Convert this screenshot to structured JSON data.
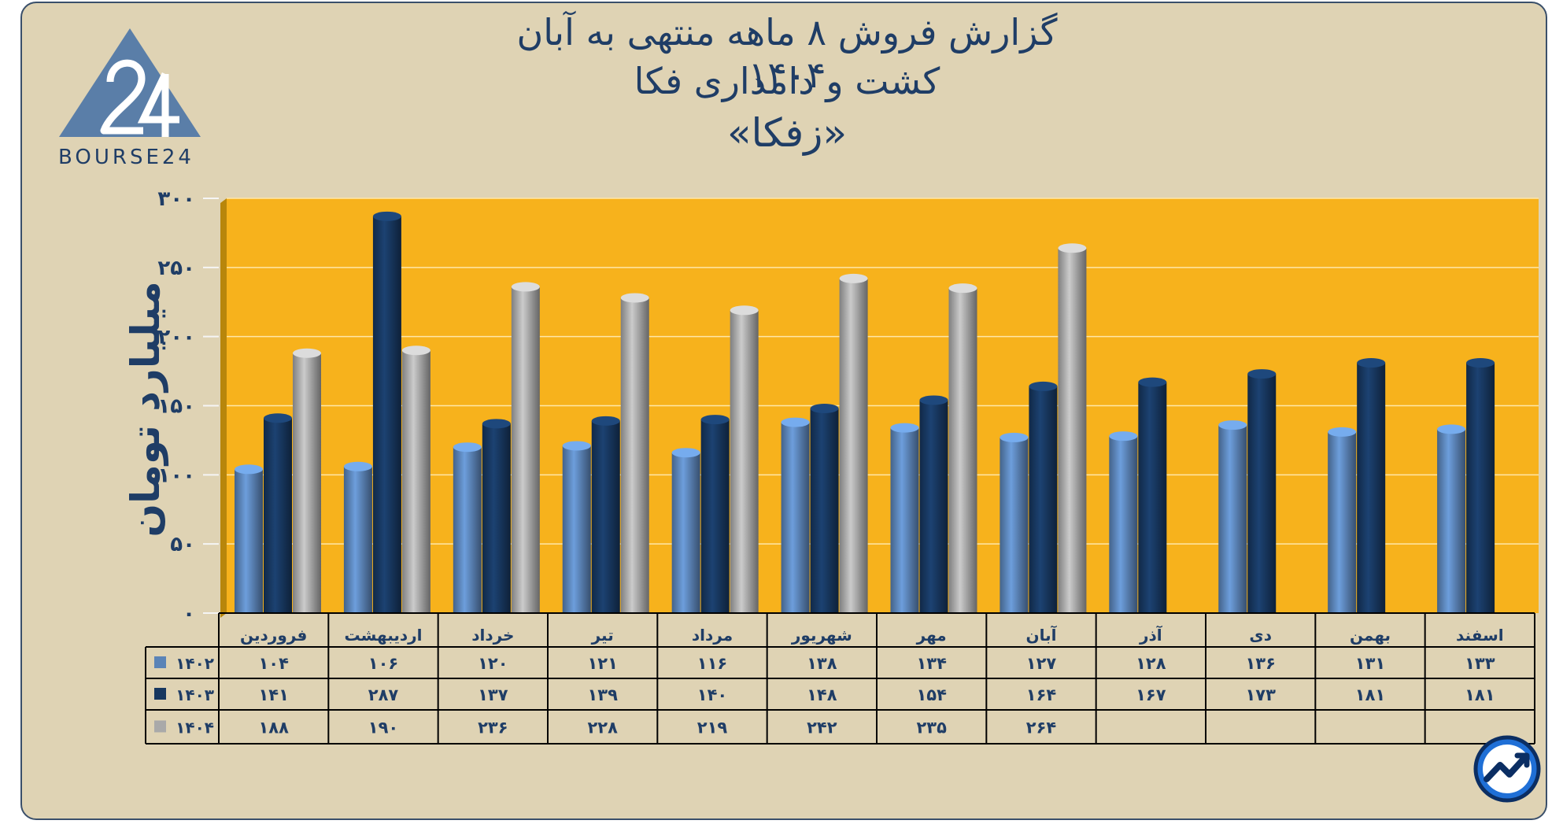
{
  "title": {
    "line1": "گزارش  فروش ۸ ماهه منتهی به آبان ۱۴۰۴",
    "line2": "کشت و دامداری فکا",
    "line3": "«زفکا»"
  },
  "logo": {
    "text": "BOURSE24",
    "icon": "bourse24-triangle-logo"
  },
  "badge": {
    "icon": "trend-chart-icon"
  },
  "colors": {
    "background": "#dfd3b4",
    "plot": "#f7b21c",
    "series_1402": "#5b84b7",
    "series_1403": "#17375f",
    "series_1404": "#a9a9a9",
    "text": "#1f3d66"
  },
  "chart_data": {
    "type": "bar",
    "ylabel": "میلیارد تومان",
    "ylim": [
      0,
      300
    ],
    "yticks": [
      "۰",
      "۵۰",
      "۱۰۰",
      "۱۵۰",
      "۲۰۰",
      "۲۵۰",
      "۳۰۰"
    ],
    "ytick_values": [
      0,
      50,
      100,
      150,
      200,
      250,
      300
    ],
    "categories": [
      "فروردین",
      "اردیبهشت",
      "خرداد",
      "تیر",
      "مرداد",
      "شهریور",
      "مهر",
      "آبان",
      "آذر",
      "دی",
      "بهمن",
      "اسفند"
    ],
    "series": [
      {
        "name": "۱۴۰۲",
        "values": [
          104,
          106,
          120,
          121,
          116,
          138,
          134,
          127,
          128,
          136,
          131,
          133
        ],
        "labels": [
          "۱۰۴",
          "۱۰۶",
          "۱۲۰",
          "۱۲۱",
          "۱۱۶",
          "۱۳۸",
          "۱۳۴",
          "۱۲۷",
          "۱۲۸",
          "۱۳۶",
          "۱۳۱",
          "۱۳۳"
        ]
      },
      {
        "name": "۱۴۰۳",
        "values": [
          141,
          287,
          137,
          139,
          140,
          148,
          154,
          164,
          167,
          173,
          181,
          181
        ],
        "labels": [
          "۱۴۱",
          "۲۸۷",
          "۱۳۷",
          "۱۳۹",
          "۱۴۰",
          "۱۴۸",
          "۱۵۴",
          "۱۶۴",
          "۱۶۷",
          "۱۷۳",
          "۱۸۱",
          "۱۸۱"
        ]
      },
      {
        "name": "۱۴۰۴",
        "values": [
          188,
          190,
          236,
          228,
          219,
          242,
          235,
          264,
          null,
          null,
          null,
          null
        ],
        "labels": [
          "۱۸۸",
          "۱۹۰",
          "۲۳۶",
          "۲۲۸",
          "۲۱۹",
          "۲۴۲",
          "۲۳۵",
          "۲۶۴",
          "",
          "",
          "",
          ""
        ]
      }
    ],
    "grid": true,
    "legend": "data-table-left"
  }
}
